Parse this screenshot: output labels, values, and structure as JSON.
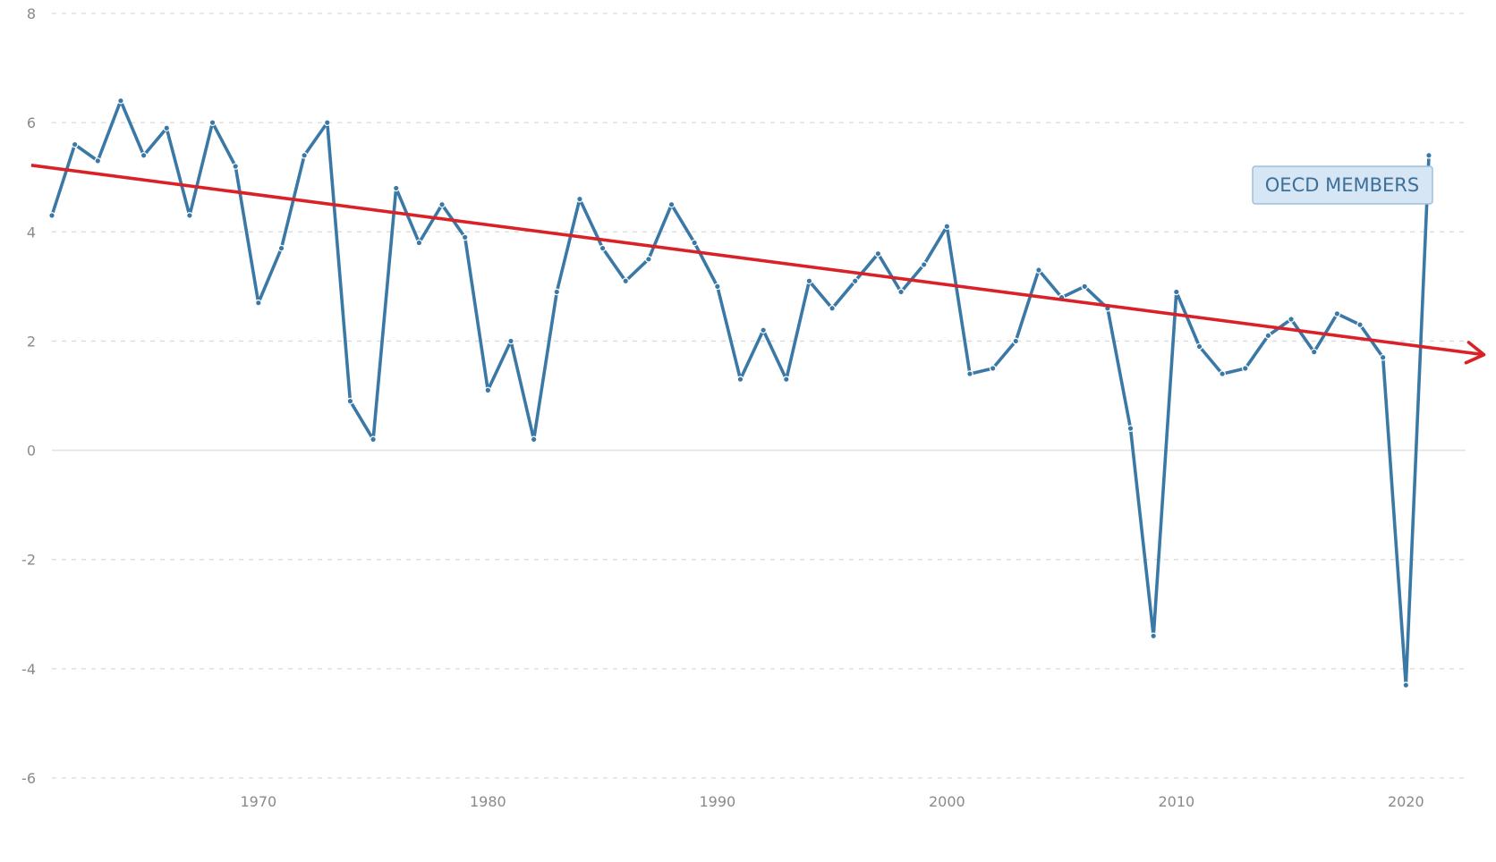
{
  "chart_data": {
    "type": "line",
    "title": "",
    "xlabel": "",
    "ylabel": "",
    "xlim": [
      1961,
      2022.6
    ],
    "ylim": [
      -6,
      8
    ],
    "x_ticks": [
      1970,
      1980,
      1990,
      2000,
      2010,
      2020
    ],
    "y_ticks": [
      -6,
      -4,
      -2,
      0,
      2,
      4,
      6,
      8
    ],
    "grid": true,
    "series": [
      {
        "name": "OECD MEMBERS",
        "color": "#3a78a5",
        "points": [
          [
            1961,
            4.3
          ],
          [
            1962,
            5.6
          ],
          [
            1963,
            5.3
          ],
          [
            1964,
            6.4
          ],
          [
            1965,
            5.4
          ],
          [
            1966,
            5.9
          ],
          [
            1967,
            4.3
          ],
          [
            1968,
            6.0
          ],
          [
            1969,
            5.2
          ],
          [
            1970,
            2.7
          ],
          [
            1971,
            3.7
          ],
          [
            1972,
            5.4
          ],
          [
            1973,
            6.0
          ],
          [
            1974,
            0.9
          ],
          [
            1975,
            0.2
          ],
          [
            1976,
            4.8
          ],
          [
            1977,
            3.8
          ],
          [
            1978,
            4.5
          ],
          [
            1979,
            3.9
          ],
          [
            1980,
            1.1
          ],
          [
            1981,
            2.0
          ],
          [
            1982,
            0.2
          ],
          [
            1983,
            2.9
          ],
          [
            1984,
            4.6
          ],
          [
            1985,
            3.7
          ],
          [
            1986,
            3.1
          ],
          [
            1987,
            3.5
          ],
          [
            1988,
            4.5
          ],
          [
            1989,
            3.8
          ],
          [
            1990,
            3.0
          ],
          [
            1991,
            1.3
          ],
          [
            1992,
            2.2
          ],
          [
            1993,
            1.3
          ],
          [
            1994,
            3.1
          ],
          [
            1995,
            2.6
          ],
          [
            1996,
            3.1
          ],
          [
            1997,
            3.6
          ],
          [
            1998,
            2.9
          ],
          [
            1999,
            3.4
          ],
          [
            2000,
            4.1
          ],
          [
            2001,
            1.4
          ],
          [
            2002,
            1.5
          ],
          [
            2003,
            2.0
          ],
          [
            2004,
            3.3
          ],
          [
            2005,
            2.8
          ],
          [
            2006,
            3.0
          ],
          [
            2007,
            2.6
          ],
          [
            2008,
            0.4
          ],
          [
            2009,
            -3.4
          ],
          [
            2010,
            2.9
          ],
          [
            2011,
            1.9
          ],
          [
            2012,
            1.4
          ],
          [
            2013,
            1.5
          ],
          [
            2014,
            2.1
          ],
          [
            2015,
            2.4
          ],
          [
            2016,
            1.8
          ],
          [
            2017,
            2.5
          ],
          [
            2018,
            2.3
          ],
          [
            2019,
            1.7
          ],
          [
            2020,
            -4.3
          ],
          [
            2021,
            5.4
          ]
        ]
      }
    ],
    "trend_arrow": {
      "color": "#d92128",
      "start": [
        1960.1,
        5.22
      ],
      "end": [
        2023.4,
        1.75
      ]
    },
    "legend": {
      "label": "OECD MEMBERS",
      "position": "top-right"
    }
  }
}
